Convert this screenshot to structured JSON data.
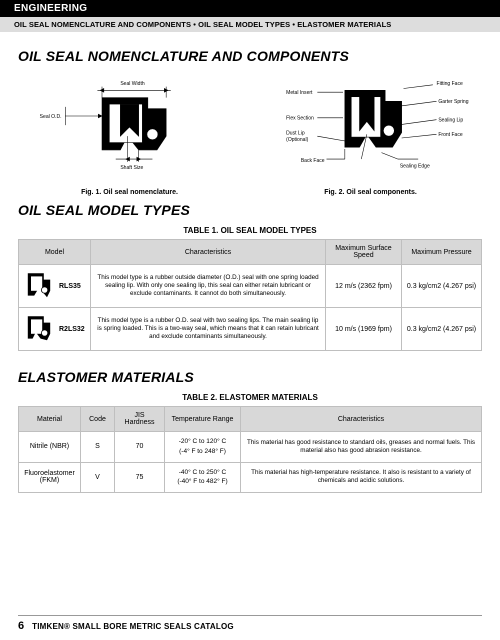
{
  "header": {
    "category": "ENGINEERING",
    "subtitle": "OIL SEAL NOMENCLATURE AND COMPONENTS • OIL SEAL MODEL TYPES • ELASTOMER MATERIALS"
  },
  "section1": {
    "title": "OIL SEAL NOMENCLATURE AND COMPONENTS",
    "fig1": {
      "caption": "Fig. 1. Oil seal nomenclature.",
      "labels": {
        "sealwidth": "Seal Width",
        "sealod": "Seal O.D.",
        "shaft": "Shaft Size"
      }
    },
    "fig2": {
      "caption": "Fig. 2. Oil seal components.",
      "labels": {
        "metal": "Metal Insert",
        "flex": "Flex Section",
        "dust": "Dust Lip\n(Optional)",
        "back": "Back Face",
        "fitting": "Fitting Face",
        "garter": "Garter Spring",
        "sealing": "Sealing Lip",
        "front": "Front Face",
        "edge": "Sealing Edge"
      }
    }
  },
  "section2": {
    "title": "OIL SEAL MODEL TYPES",
    "table_title": "TABLE 1. OIL SEAL MODEL TYPES",
    "cols": {
      "c1": "Model",
      "c2": "Characteristics",
      "c3": "Maximum Surface Speed",
      "c4": "Maximum Pressure"
    },
    "rows": [
      {
        "model": "RLS35",
        "char": "This model type is a rubber outside diameter (O.D.) seal with one spring loaded sealing lip. With only one sealing lip, this seal can either retain lubricant or exclude contaminants. It cannot do both simultaneously.",
        "speed": "12 m/s (2362 fpm)",
        "press": "0.3 kg/cm2 (4.267 psi)"
      },
      {
        "model": "R2LS32",
        "char": "This model type is a rubber O.D. seal with two sealing lips. The main sealing lip is spring loaded. This is a two-way seal, which means that it can retain lubricant and exclude contaminants simultaneously.",
        "speed": "10 m/s (1969 fpm)",
        "press": "0.3 kg/cm2 (4.267 psi)"
      }
    ]
  },
  "section3": {
    "title": "ELASTOMER MATERIALS",
    "table_title": "TABLE 2. ELASTOMER MATERIALS",
    "cols": {
      "c1": "Material",
      "c2": "Code",
      "c3": "JIS Hardness",
      "c4": "Temperature Range",
      "c5": "Characteristics"
    },
    "rows": [
      {
        "mat": "Nitrile (NBR)",
        "code": "S",
        "hard": "70",
        "temp": "-20° C to 120° C\n(-4° F to 248° F)",
        "char": "This material has good resistance to standard oils, greases and normal fuels. This material also has good abrasion resistance."
      },
      {
        "mat": "Fluoroelastomer (FKM)",
        "code": "V",
        "hard": "75",
        "temp": "-40° C to 250° C\n(-40° F to 482° F)",
        "char": "This material has high-temperature resistance. It also is resistant to a variety of chemicals and acidic solutions."
      }
    ]
  },
  "footer": {
    "page": "6",
    "title": "TIMKEN® SMALL BORE METRIC SEALS CATALOG"
  }
}
